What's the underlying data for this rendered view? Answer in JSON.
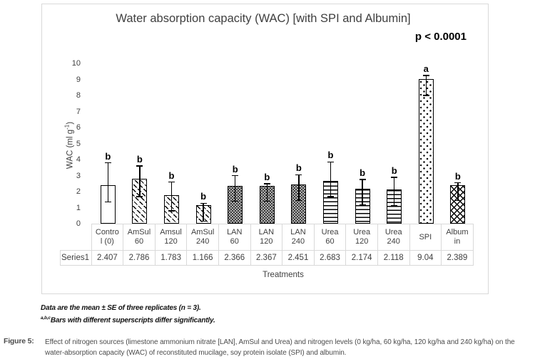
{
  "figure": {
    "footnote1": "Data are the mean ± SE of three replicates (n = 3).",
    "footnote2_sup": "a,b,c",
    "footnote2": "Bars with different superscripts differ significantly.",
    "caption_label": "Figure 5:",
    "caption_text": "Effect of nitrogen sources (limestone ammonium nitrate [LAN], AmSul and Urea) and nitrogen levels (0 kg/ha, 60 kg/ha, 120 kg/ha and 240 kg/ha) on the water-absorption capacity (WAC) of reconstituted mucilage, soy protein isolate (SPI) and albumin."
  },
  "chart_data": {
    "type": "bar",
    "title": "Water absorption capacity (WAC) [with SPI and Albumin]",
    "annotation": "p < 0.0001",
    "ylabel_main": "WAC (ml g",
    "ylabel_sup": "-1",
    "ylabel_end": ")",
    "xlabel": "Treatments",
    "ylim": [
      0,
      10
    ],
    "yticks": [
      0,
      1,
      2,
      3,
      4,
      5,
      6,
      7,
      8,
      9,
      10
    ],
    "grid": false,
    "legend_position": "none",
    "series_name": "Series1",
    "categories": [
      "Control (0)",
      "AmSul 60",
      "Amsul 120",
      "AmSul 240",
      "LAN 60",
      "LAN 120",
      "LAN 240",
      "Urea 60",
      "Urea 120",
      "Urea 240",
      "SPI",
      "Albumin"
    ],
    "category_label_lines": [
      [
        "Contro",
        "l (0)"
      ],
      [
        "AmSul",
        "60"
      ],
      [
        "Amsul",
        "120"
      ],
      [
        "AmSul",
        "240"
      ],
      [
        "LAN",
        "60"
      ],
      [
        "LAN",
        "120"
      ],
      [
        "LAN",
        "240"
      ],
      [
        "Urea",
        "60"
      ],
      [
        "Urea",
        "120"
      ],
      [
        "Urea",
        "240"
      ],
      [
        "SPI"
      ],
      [
        "Album",
        "in"
      ]
    ],
    "values": [
      2.407,
      2.786,
      1.783,
      1.166,
      2.366,
      2.367,
      2.451,
      2.683,
      2.174,
      2.118,
      9.04,
      2.389
    ],
    "value_labels": [
      "2.407",
      "2.786",
      "1.783",
      "1.166",
      "2.366",
      "2.367",
      "2.451",
      "2.683",
      "2.174",
      "2.118",
      "9.04",
      "2.389"
    ],
    "error_upper": [
      3.8,
      3.6,
      2.6,
      1.27,
      3.0,
      2.5,
      3.05,
      3.85,
      2.75,
      2.9,
      9.25,
      2.55
    ],
    "error_lower": [
      1.35,
      1.7,
      0.8,
      0.15,
      1.4,
      1.4,
      1.45,
      1.7,
      1.15,
      1.1,
      8.0,
      1.45
    ],
    "sig_letters": [
      "b",
      "b",
      "b",
      "b",
      "b",
      "b",
      "b",
      "b",
      "b",
      "b",
      "a",
      "b"
    ],
    "bar_patterns": [
      "plain",
      "diag-dash",
      "diag-dash",
      "diag-dash",
      "dense-dots",
      "dense-dots",
      "dense-dots",
      "hlines",
      "hlines",
      "hlines",
      "sparse-dots",
      "crosshatch"
    ],
    "colors": {
      "bar_outline": "#000000",
      "frame_border": "#d9d9d9",
      "table_border": "#d9d9d9",
      "axis_text": "#404040",
      "annotation_text": "#000000"
    }
  }
}
